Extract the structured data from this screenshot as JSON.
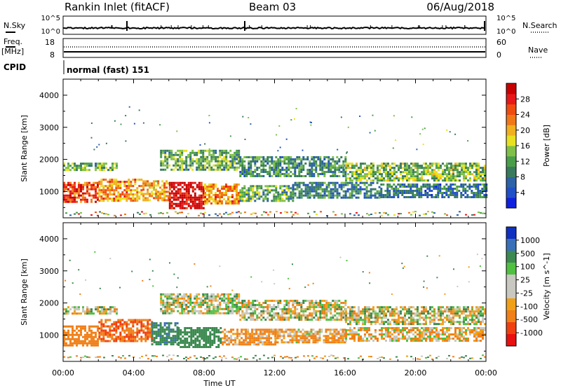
{
  "header": {
    "title": "Rankin Inlet (fitACF)",
    "beam": "Beam 03",
    "date": "06/Aug/2018"
  },
  "strip_panels": {
    "nsky_label": "N.Sky",
    "nsky_ticks": [
      "10^5",
      "10^0"
    ],
    "nsearch_label": "N.Search",
    "freq_label": "Freq.",
    "freq_unit": "[MHz]",
    "freq_ticks": [
      "18",
      "8"
    ],
    "nave_label": "Nave",
    "nave_ticks": [
      "60",
      "0"
    ],
    "cpid_label": "CPID",
    "cpid_text": "normal (fast) 151"
  },
  "chart_data": [
    {
      "type": "heatmap",
      "name": "power",
      "ylabel": "Slant Range [km]",
      "ylim": [
        180,
        4500
      ],
      "yticks": [
        1000,
        2000,
        3000,
        4000
      ],
      "xlim": [
        0,
        24
      ],
      "colorbar": {
        "label": "Power [dB]",
        "ticks": [
          4,
          8,
          12,
          16,
          20,
          24,
          28
        ],
        "colors": [
          "#1020e0",
          "#2050c8",
          "#2c62a8",
          "#3a7a5c",
          "#4a9e4a",
          "#80c048",
          "#e8e020",
          "#f0b020",
          "#f07818",
          "#f04c10",
          "#e81818",
          "#c80000"
        ]
      },
      "bands": [
        {
          "t0": 0.0,
          "t1": 3.0,
          "r0": 1680,
          "r1": 1900,
          "level": 12
        },
        {
          "t0": 5.5,
          "t1": 10.0,
          "r0": 1700,
          "r1": 2300,
          "level": 12
        },
        {
          "t0": 10.0,
          "t1": 16.0,
          "r0": 1500,
          "r1": 2100,
          "level": 10
        },
        {
          "t0": 16.0,
          "t1": 24.0,
          "r0": 1350,
          "r1": 1900,
          "level": 13
        },
        {
          "t0": 0.0,
          "t1": 2.0,
          "r0": 650,
          "r1": 1300,
          "level": 24
        },
        {
          "t0": 2.0,
          "t1": 4.5,
          "r0": 700,
          "r1": 1400,
          "level": 20
        },
        {
          "t0": 4.5,
          "t1": 6.0,
          "r0": 700,
          "r1": 1350,
          "level": 19
        },
        {
          "t0": 6.0,
          "t1": 8.0,
          "r0": 500,
          "r1": 1300,
          "level": 28
        },
        {
          "t0": 8.0,
          "t1": 10.0,
          "r0": 600,
          "r1": 1250,
          "level": 20
        },
        {
          "t0": 10.0,
          "t1": 13.0,
          "r0": 700,
          "r1": 1200,
          "level": 12
        },
        {
          "t0": 13.0,
          "t1": 18.0,
          "r0": 800,
          "r1": 1300,
          "level": 9
        },
        {
          "t0": 18.0,
          "t1": 24.0,
          "r0": 850,
          "r1": 1250,
          "level": 8
        }
      ]
    },
    {
      "type": "heatmap",
      "name": "velocity",
      "ylabel": "Slant Range [km]",
      "ylim": [
        180,
        4500
      ],
      "yticks": [
        1000,
        2000,
        3000,
        4000
      ],
      "xlim": [
        0,
        24
      ],
      "xlabel": "Time UT",
      "xticks": [
        "00:00",
        "04:00",
        "08:00",
        "12:00",
        "16:00",
        "20:00",
        "00:00"
      ],
      "colorbar": {
        "label": "Velocity [m s^-1]",
        "ticks": [
          1000,
          500,
          100,
          25,
          -25,
          -100,
          -500,
          -1000
        ],
        "colors": [
          "#1030c0",
          "#3a70b8",
          "#3c8a50",
          "#50c040",
          "#c8c8c0",
          "#c8c8c0",
          "#f0a018",
          "#f08018",
          "#f04010",
          "#e81010"
        ]
      },
      "bands": [
        {
          "t0": 0.0,
          "t1": 3.0,
          "r0": 1650,
          "r1": 1900,
          "level": 0
        },
        {
          "t0": 5.5,
          "t1": 10.0,
          "r0": 1700,
          "r1": 2300,
          "level": 10
        },
        {
          "t0": 10.0,
          "t1": 16.0,
          "r0": 1500,
          "r1": 2100,
          "level": 0
        },
        {
          "t0": 16.0,
          "t1": 24.0,
          "r0": 1350,
          "r1": 1900,
          "level": 0
        },
        {
          "t0": 0.0,
          "t1": 2.0,
          "r0": 700,
          "r1": 1300,
          "level": -150
        },
        {
          "t0": 2.0,
          "t1": 5.0,
          "r0": 800,
          "r1": 1500,
          "level": -250
        },
        {
          "t0": 5.0,
          "t1": 6.5,
          "r0": 700,
          "r1": 1400,
          "level": 200
        },
        {
          "t0": 6.5,
          "t1": 9.0,
          "r0": 650,
          "r1": 1250,
          "level": 150
        },
        {
          "t0": 9.0,
          "t1": 12.0,
          "r0": 700,
          "r1": 1200,
          "level": -80
        },
        {
          "t0": 12.0,
          "t1": 16.0,
          "r0": 800,
          "r1": 1200,
          "level": -60
        },
        {
          "t0": 16.0,
          "t1": 24.0,
          "r0": 850,
          "r1": 1250,
          "level": -40
        }
      ]
    }
  ]
}
